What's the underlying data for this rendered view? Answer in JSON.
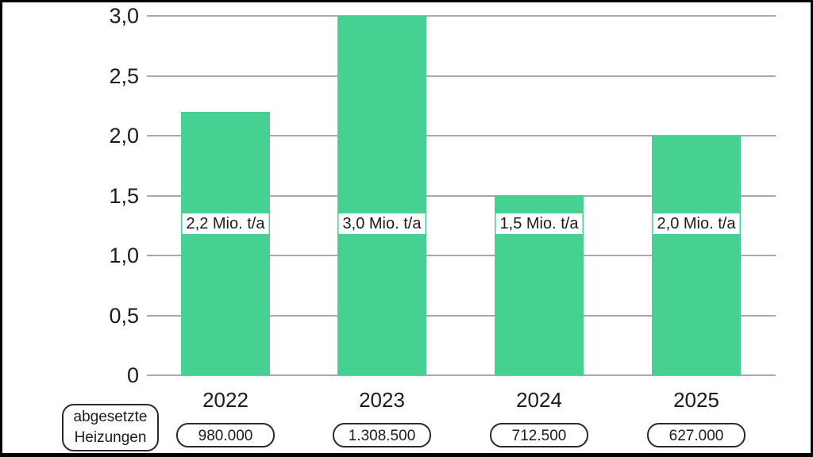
{
  "chart_data": {
    "type": "bar",
    "title": "",
    "xlabel": "",
    "ylabel": "",
    "unit": "Mio. t/a",
    "categories": [
      "2022",
      "2023",
      "2024",
      "2025"
    ],
    "values": [
      2.2,
      3.0,
      1.5,
      2.0
    ],
    "ylim": [
      0,
      3.0
    ],
    "grid": true,
    "legend_position": "bottom-left",
    "ytick_values": [
      3.0,
      2.5,
      2.0,
      1.5,
      1.0,
      0.5,
      0
    ],
    "ytick_labels": [
      "3,0",
      "2,5",
      "2,0",
      "1,5",
      "1,0",
      "0,5",
      "0"
    ],
    "bars": [
      {
        "category": "2022",
        "value": 2.2,
        "value_label": "2,2 Mio. t/a",
        "footer_value": "980.000"
      },
      {
        "category": "2023",
        "value": 3.0,
        "value_label": "3,0 Mio. t/a",
        "footer_value": "1.308.500"
      },
      {
        "category": "2024",
        "value": 1.5,
        "value_label": "1,5 Mio. t/a",
        "footer_value": "712.500"
      },
      {
        "category": "2025",
        "value": 2.0,
        "value_label": "2,0 Mio. t/a",
        "footer_value": "627.000"
      }
    ]
  },
  "footer": {
    "legend_label": "abgesetzte Heizungen"
  },
  "colors": {
    "bar": "#46d192",
    "gridline": "#a9a9a9",
    "text": "#1b1b1b",
    "frame_border": "#000000",
    "pill_border": "#2a2a2a",
    "background": "#ffffff"
  }
}
